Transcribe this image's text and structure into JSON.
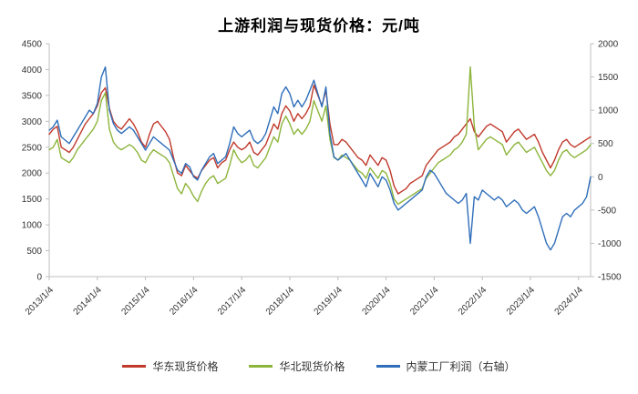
{
  "title": "上游利润与现货价格：元/吨",
  "chart_data": {
    "type": "line",
    "x_start": "2013/1/4",
    "x_resolution": "monthly-estimate",
    "x_tick_labels": [
      "2013/1/4",
      "2014/1/4",
      "2015/1/4",
      "2016/1/4",
      "2017/1/4",
      "2018/1/4",
      "2019/1/4",
      "2020/1/4",
      "2021/1/4",
      "2022/1/4",
      "2023/1/4",
      "2024/1/4"
    ],
    "left_axis": {
      "min": 0,
      "max": 4500,
      "step": 500,
      "ticks": [
        "0",
        "500",
        "1000",
        "1500",
        "2000",
        "2500",
        "3000",
        "3500",
        "4000",
        "4500"
      ]
    },
    "right_axis": {
      "min": -1500,
      "max": 2000,
      "step": 500,
      "ticks": [
        "-1500",
        "-1000",
        "-500",
        "0",
        "500",
        "1000",
        "1500",
        "2000"
      ]
    },
    "grid": false,
    "legend_position": "bottom",
    "series": [
      {
        "name": "华东现货价格",
        "axis": "left",
        "color": "#c0392b",
        "values": [
          2750,
          2850,
          2900,
          2500,
          2450,
          2400,
          2500,
          2650,
          2800,
          2950,
          3050,
          3150,
          3300,
          3550,
          3650,
          3250,
          3000,
          2900,
          2850,
          2950,
          3050,
          2950,
          2800,
          2600,
          2500,
          2750,
          2950,
          3000,
          2900,
          2800,
          2650,
          2300,
          2000,
          1950,
          2150,
          2050,
          1950,
          1900,
          2050,
          2150,
          2250,
          2300,
          2100,
          2200,
          2250,
          2450,
          2600,
          2500,
          2450,
          2500,
          2600,
          2400,
          2350,
          2450,
          2550,
          2750,
          2950,
          2850,
          3150,
          3300,
          3200,
          3000,
          3150,
          3050,
          3150,
          3300,
          3700,
          3500,
          3300,
          3600,
          2950,
          2550,
          2550,
          2650,
          2600,
          2500,
          2400,
          2300,
          2250,
          2150,
          2350,
          2250,
          2150,
          2300,
          2250,
          2050,
          1750,
          1600,
          1650,
          1700,
          1800,
          1850,
          1900,
          1950,
          2150,
          2250,
          2350,
          2450,
          2500,
          2550,
          2600,
          2700,
          2750,
          2850,
          2950,
          3050,
          2800,
          2700,
          2800,
          2900,
          2950,
          2900,
          2850,
          2800,
          2600,
          2700,
          2800,
          2850,
          2750,
          2650,
          2700,
          2750,
          2600,
          2400,
          2250,
          2100,
          2250,
          2450,
          2600,
          2650,
          2550,
          2500,
          2550,
          2600,
          2650,
          2700
        ]
      },
      {
        "name": "华北现货价格",
        "axis": "left",
        "color": "#8db53c",
        "values": [
          2450,
          2500,
          2650,
          2300,
          2250,
          2200,
          2300,
          2450,
          2550,
          2650,
          2750,
          2850,
          3000,
          3400,
          3550,
          2850,
          2600,
          2500,
          2450,
          2500,
          2550,
          2500,
          2400,
          2250,
          2200,
          2350,
          2450,
          2400,
          2350,
          2300,
          2200,
          1950,
          1700,
          1600,
          1800,
          1700,
          1550,
          1450,
          1650,
          1800,
          1900,
          1950,
          1800,
          1850,
          1900,
          2150,
          2450,
          2300,
          2200,
          2250,
          2350,
          2150,
          2100,
          2200,
          2300,
          2500,
          2700,
          2600,
          2950,
          3100,
          2950,
          2750,
          2850,
          2750,
          2850,
          3000,
          3400,
          3200,
          3000,
          3300,
          2650,
          2300,
          2250,
          2350,
          2300,
          2250,
          2150,
          2050,
          2000,
          1900,
          2100,
          2000,
          1900,
          2050,
          2000,
          1800,
          1500,
          1400,
          1450,
          1500,
          1550,
          1600,
          1650,
          1700,
          1900,
          2000,
          2100,
          2200,
          2250,
          2300,
          2350,
          2450,
          2500,
          2600,
          2750,
          4050,
          2900,
          2450,
          2550,
          2650,
          2700,
          2650,
          2600,
          2550,
          2350,
          2450,
          2550,
          2600,
          2500,
          2400,
          2450,
          2500,
          2350,
          2200,
          2050,
          1950,
          2050,
          2250,
          2400,
          2450,
          2350,
          2300,
          2350,
          2400,
          2450,
          2550
        ]
      },
      {
        "name": "内蒙工厂利润（右轴）",
        "axis": "right",
        "color": "#2f6eba",
        "values": [
          700,
          750,
          850,
          600,
          550,
          500,
          600,
          700,
          800,
          900,
          1000,
          950,
          1100,
          1500,
          1650,
          1000,
          800,
          700,
          650,
          700,
          750,
          700,
          600,
          500,
          400,
          500,
          600,
          550,
          500,
          450,
          400,
          250,
          100,
          50,
          200,
          150,
          0,
          -50,
          100,
          200,
          300,
          350,
          200,
          250,
          300,
          500,
          750,
          650,
          600,
          650,
          700,
          550,
          500,
          550,
          650,
          850,
          1050,
          950,
          1250,
          1350,
          1250,
          1050,
          1150,
          1050,
          1150,
          1300,
          1450,
          1250,
          1050,
          1350,
          650,
          300,
          250,
          300,
          350,
          250,
          150,
          50,
          -50,
          -150,
          50,
          -50,
          -150,
          0,
          -50,
          -200,
          -400,
          -500,
          -450,
          -400,
          -350,
          -300,
          -250,
          -200,
          0,
          100,
          50,
          -50,
          -150,
          -250,
          -300,
          -350,
          -400,
          -350,
          -250,
          -1000,
          -300,
          -350,
          -200,
          -250,
          -300,
          -350,
          -300,
          -350,
          -450,
          -400,
          -350,
          -400,
          -500,
          -550,
          -500,
          -450,
          -600,
          -800,
          -1000,
          -1100,
          -1000,
          -800,
          -600,
          -550,
          -600,
          -500,
          -450,
          -400,
          -300,
          0
        ]
      }
    ]
  }
}
